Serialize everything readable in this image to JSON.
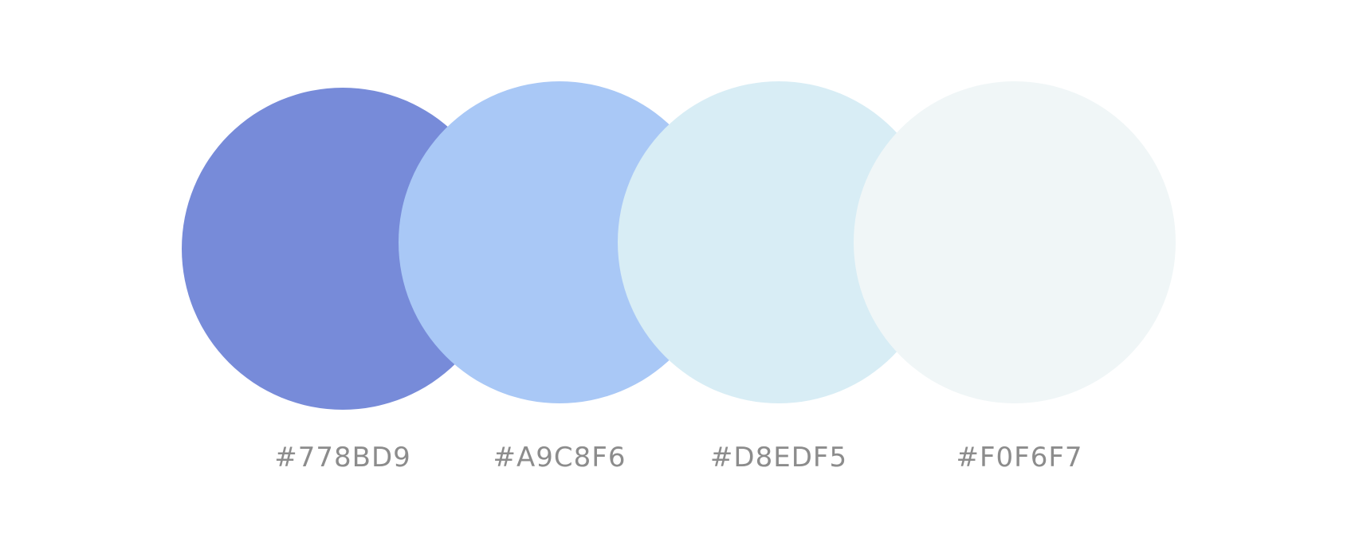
{
  "palette": {
    "swatches": [
      {
        "color": "#778BD9",
        "label": "#778BD9"
      },
      {
        "color": "#A9C8F6",
        "label": "#A9C8F6"
      },
      {
        "color": "#D8EDF5",
        "label": "#D8EDF5"
      },
      {
        "color": "#F0F6F7",
        "label": "#F0F6F7"
      }
    ],
    "label_color": "#8C8C8C",
    "background": "#FFFFFF"
  }
}
